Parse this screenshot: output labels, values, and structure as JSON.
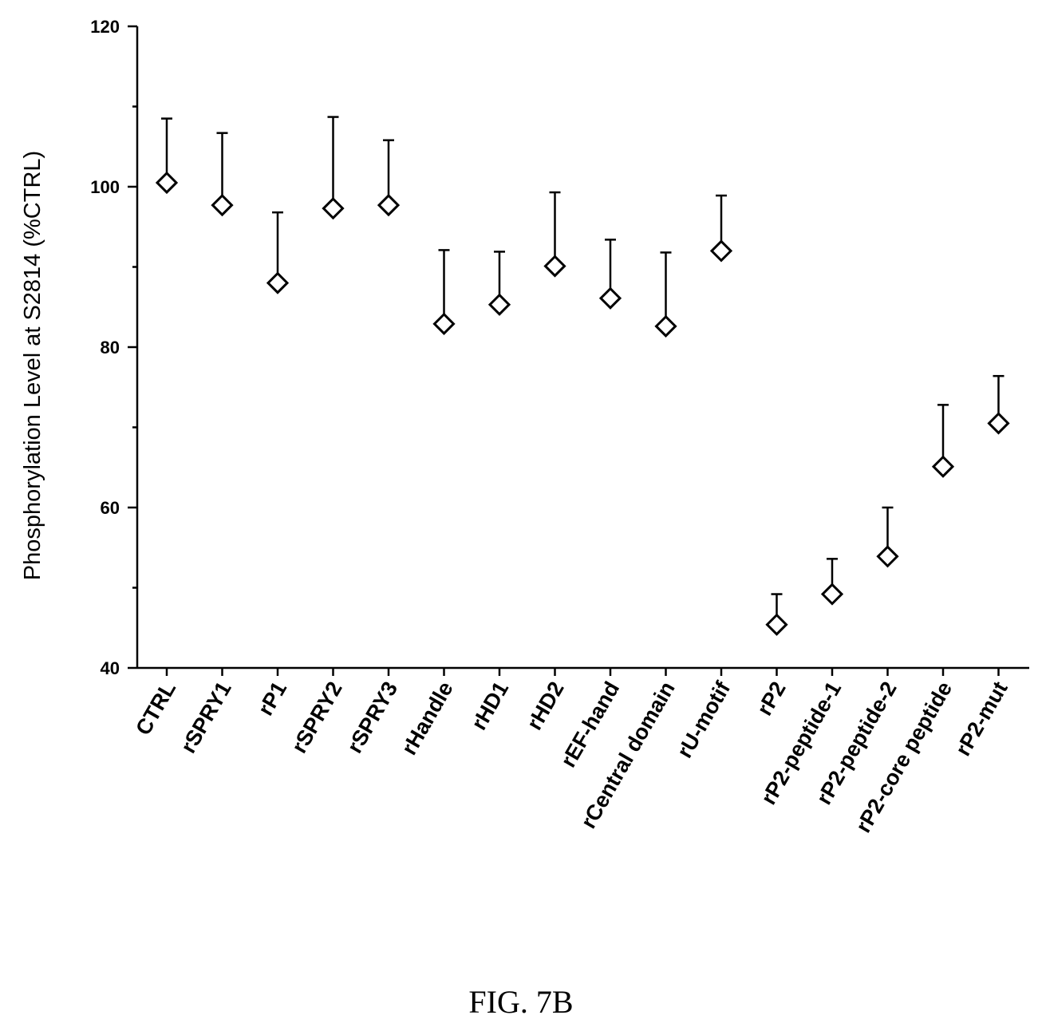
{
  "caption": "FIG. 7B",
  "chart_data": {
    "type": "scatter",
    "title": "",
    "xlabel": "",
    "ylabel": "Phosphorylation Level at S2814 (%CTRL)",
    "ylim": [
      40,
      120
    ],
    "yticks": [
      40,
      60,
      80,
      100,
      120
    ],
    "grid": false,
    "legend": "none",
    "marker": "open-diamond",
    "error_bars": "upper",
    "categories": [
      "CTRL",
      "rSPRY1",
      "rP1",
      "rSPRY2",
      "rSPRY3",
      "rHandle",
      "rHD1",
      "rHD2",
      "rEF-hand",
      "rCentral domain",
      "rU-motif",
      "rP2",
      "rP2-peptide-1",
      "rP2-peptide-2",
      "rP2-core peptide",
      "rP2-mut"
    ],
    "values": [
      100.5,
      97.7,
      88.0,
      97.3,
      97.7,
      82.9,
      85.3,
      90.1,
      86.1,
      82.6,
      92.0,
      45.4,
      49.2,
      53.9,
      65.1,
      70.5
    ],
    "error_upper": [
      108.5,
      106.7,
      96.8,
      108.7,
      105.8,
      92.1,
      91.9,
      99.3,
      93.4,
      91.8,
      98.9,
      49.2,
      53.6,
      60.0,
      72.8,
      76.4
    ]
  }
}
